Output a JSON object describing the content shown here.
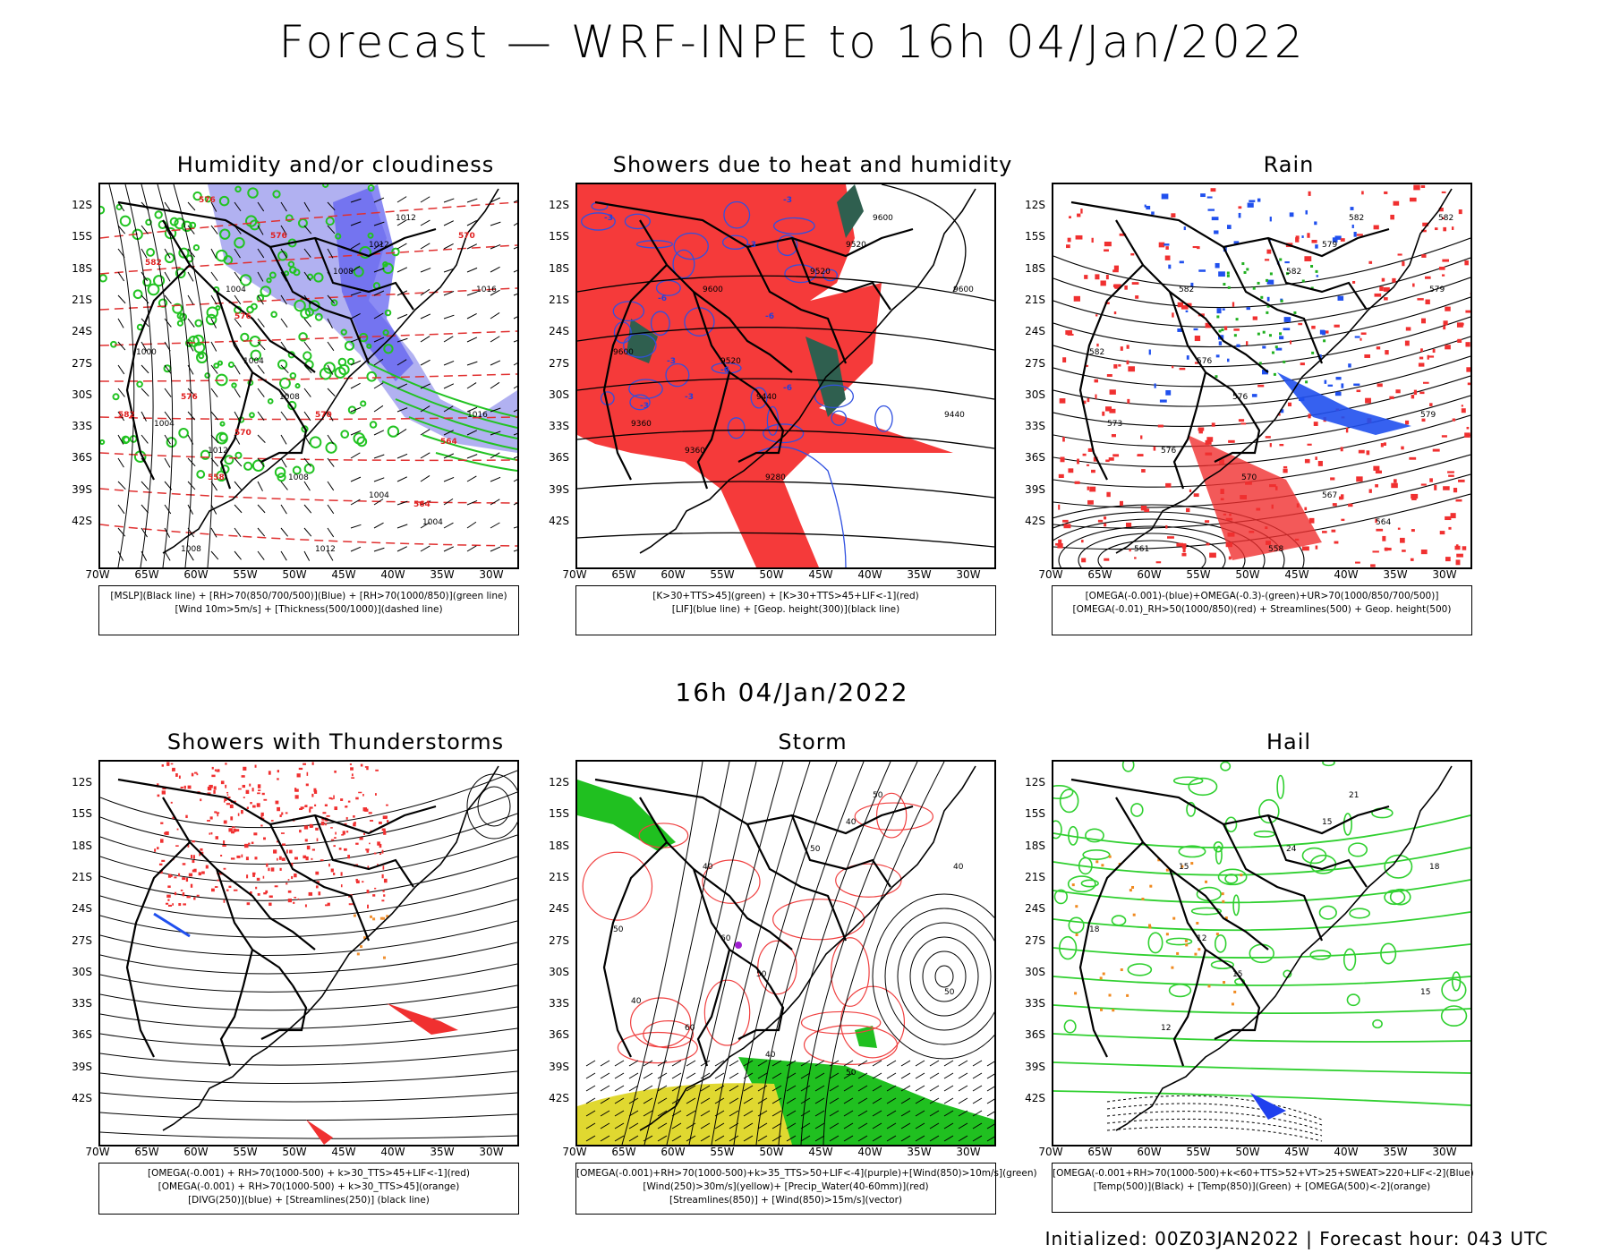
{
  "main_title": "Forecast — WRF-INPE to 16h 04/Jan/2022",
  "mid_title": "16h 04/Jan/2022",
  "footer": "Initialized: 00Z03JAN2022 | Forecast hour: 043 UTC",
  "lat_labels": [
    "12S",
    "15S",
    "18S",
    "21S",
    "24S",
    "27S",
    "30S",
    "33S",
    "36S",
    "39S",
    "42S"
  ],
  "lon_labels": [
    "70W",
    "65W",
    "60W",
    "55W",
    "50W",
    "45W",
    "40W",
    "35W",
    "30W"
  ],
  "panels": [
    {
      "title": "Humidity and/or cloudiness",
      "legend": [
        "[MSLP](Black line) + [RH>70(850/700/500)](Blue) + [RH>70(1000/850)](green line)",
        "[Wind 10m>5m/s] + [Thickness(500/1000)](dashed line)"
      ],
      "labels": [
        "1012",
        "1008",
        "1004",
        "1000",
        "1016",
        "1012",
        "1004",
        "1008",
        "1016",
        "1012",
        "1004",
        "1008",
        "1004",
        "1004",
        "1008",
        "1012"
      ],
      "red_labels": [
        "576",
        "576",
        "582",
        "570",
        "576",
        "570",
        "564",
        "582",
        "576",
        "570",
        "564",
        "558"
      ],
      "colors": {
        "shade": "#a8a8f0",
        "shade2": "#5a5af0",
        "contour": "#22c322",
        "dash": "#e03030",
        "line": "#000000"
      }
    },
    {
      "title": "Showers due to heat and humidity",
      "legend": [
        "[K>30+TTS>45](green) + [K>30+TTS>45+LIF<-1](red)",
        "[LIF](blue line) + [Geop. height(300)](black line)"
      ],
      "labels": [
        "9600",
        "9520",
        "9600",
        "9600",
        "9600",
        "9520",
        "9520",
        "9440",
        "9440",
        "9360",
        "9360",
        "9280"
      ],
      "blue_labels": [
        "-3",
        "-3",
        "-6",
        "-6",
        "-3",
        "-6",
        "-3",
        "-6",
        "-3",
        "-3"
      ],
      "colors": {
        "fill": "#f53a3a",
        "green": "#2f5f4f",
        "blue": "#3050e0",
        "line": "#000000"
      }
    },
    {
      "title": "Rain",
      "legend": [
        "[OMEGA(-0.001)-(blue)+OMEGA(-0.3)-(green)+UR>70(1000/850/700/500)]",
        "[OMEGA(-0.01)_RH>50(1000/850)(red) + Streamlines(500) + Geop. height(500)"
      ],
      "labels": [
        "582",
        "582",
        "582",
        "582",
        "579",
        "579",
        "576",
        "576",
        "579",
        "576",
        "573",
        "570",
        "567",
        "564",
        "561",
        "558",
        "582"
      ],
      "colors": {
        "red": "#f03030",
        "blue": "#2050ee",
        "green": "#20b020",
        "line": "#000000"
      }
    },
    {
      "title": "Showers with Thunderstorms",
      "legend": [
        "[OMEGA(-0.001) + RH>70(1000-500) + k>30_TTS>45+LIF<-1](red)",
        "[OMEGA(-0.001) + RH>70(1000-500) + k>30_TTS>45](orange)",
        "[DIVG(250)](blue) + [Streamlines(250)] (black line)"
      ],
      "colors": {
        "red": "#f03030",
        "orange": "#f09030",
        "blue": "#2050ee",
        "line": "#000000"
      }
    },
    {
      "title": "Storm",
      "legend": [
        "[OMEGA(-0.001)+RH>70(1000-500)+k>35_TTS>50+LIF<-4](purple)+[Wind(850)>10m/s](green)",
        "[Wind(250)>30m/s](yellow)+ [Precip_Water(40-60mm)](red)",
        "[Streamlines(850)] + [Wind(850)>15m/s](vector)"
      ],
      "labels": [
        "50",
        "50",
        "40",
        "50",
        "40",
        "40",
        "60",
        "50",
        "50",
        "60",
        "40",
        "40",
        "50"
      ],
      "colors": {
        "green": "#20c020",
        "yellow": "#e0d830",
        "red": "#f04040",
        "purple": "#a020d0",
        "line": "#000000"
      }
    },
    {
      "title": "Hail",
      "legend": [
        "[OMEGA(-0.001+RH>70(1000-500)+k<60+TTS>52+VT>25+SWEAT>220+LIF<-2](Blue)",
        "[Temp(500)](Black) + [Temp(850)](Green) + [OMEGA(500)<-2](orange)"
      ],
      "labels": [
        "21",
        "24",
        "15",
        "18",
        "18",
        "15",
        "12",
        "15",
        "15",
        "12"
      ],
      "colors": {
        "green": "#30d030",
        "orange": "#f08a20",
        "blue": "#2040ee",
        "line": "#000000"
      }
    }
  ]
}
